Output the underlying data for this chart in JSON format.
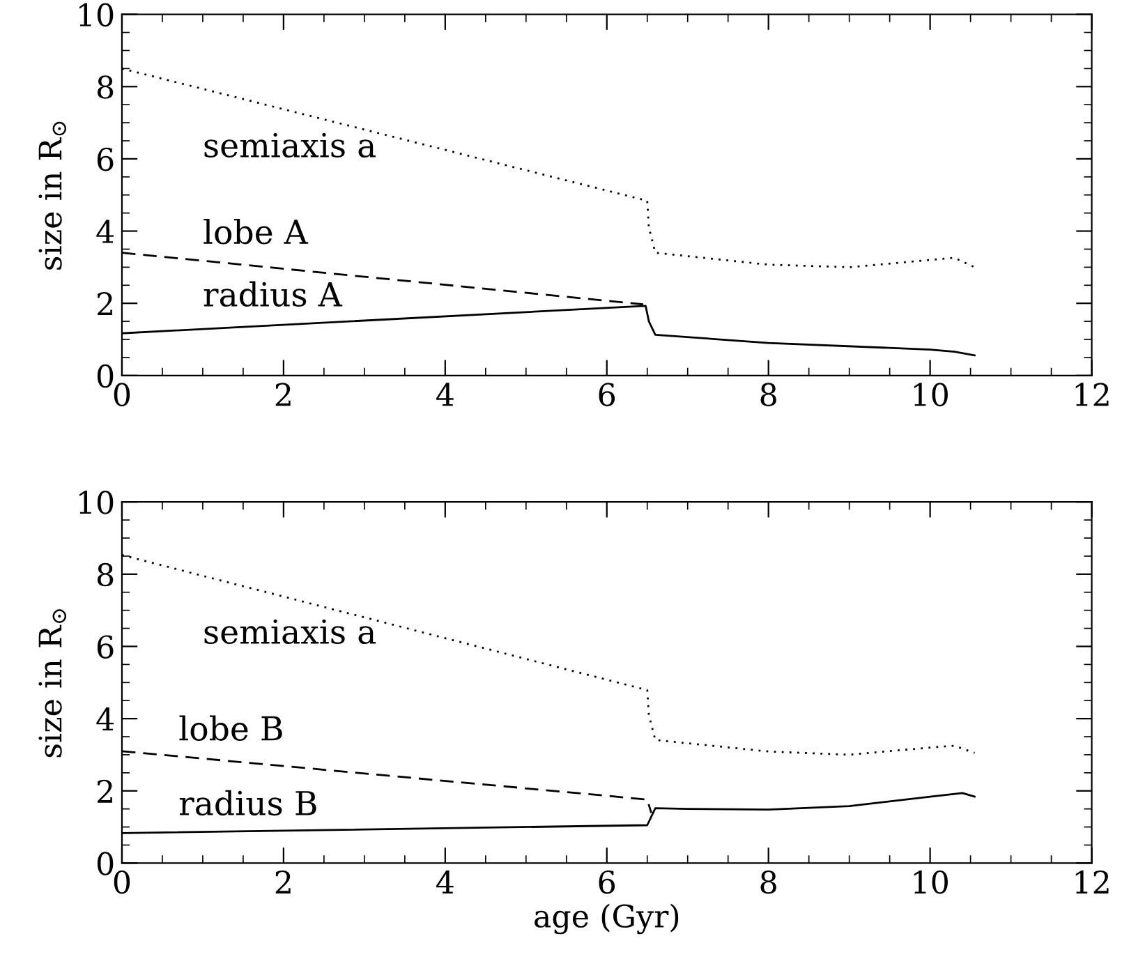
{
  "chart_data": [
    {
      "type": "line",
      "ylabel": "size in R$_{⊙}$",
      "xlim": [
        0,
        12
      ],
      "ylim": [
        0,
        10
      ],
      "xticks": [
        0,
        2,
        4,
        6,
        8,
        10,
        12
      ],
      "yticks": [
        0,
        2,
        4,
        6,
        8,
        10
      ],
      "grid": false,
      "legend": false,
      "marker": "none",
      "series": [
        {
          "name": "semiaxis a",
          "color": "#000000",
          "line_style": "dotted",
          "x": [
            0,
            6.5,
            6.52,
            6.6,
            8,
            9,
            10,
            10.3,
            10.55
          ],
          "values": [
            8.5,
            4.84,
            4.1,
            3.4,
            3.07,
            3.0,
            3.2,
            3.26,
            3.0
          ]
        },
        {
          "name": "lobe A",
          "color": "#000000",
          "line_style": "dashed",
          "x": [
            0,
            6.45
          ],
          "values": [
            3.4,
            1.97
          ]
        },
        {
          "name": "radius A",
          "color": "#000000",
          "line_style": "solid",
          "x": [
            0,
            6.48,
            6.52,
            6.6,
            8,
            10,
            10.3,
            10.55
          ],
          "values": [
            1.17,
            1.93,
            1.5,
            1.13,
            0.9,
            0.72,
            0.66,
            0.56
          ]
        }
      ]
    },
    {
      "type": "line",
      "xlabel": "age (Gyr)",
      "ylabel": "size in R$_{⊙}$",
      "xlim": [
        0,
        12
      ],
      "ylim": [
        0,
        10
      ],
      "xticks": [
        0,
        2,
        4,
        6,
        8,
        10,
        12
      ],
      "yticks": [
        0,
        2,
        4,
        6,
        8,
        10
      ],
      "grid": false,
      "legend": false,
      "marker": "none",
      "series": [
        {
          "name": "semiaxis a",
          "color": "#000000",
          "line_style": "dotted",
          "x": [
            0,
            6.5,
            6.52,
            6.6,
            8,
            9,
            10,
            10.3,
            10.55
          ],
          "values": [
            8.53,
            4.79,
            4.1,
            3.41,
            3.09,
            3.0,
            3.2,
            3.25,
            3.05
          ]
        },
        {
          "name": "lobe B",
          "color": "#000000",
          "line_style": "dashed",
          "x": [
            0,
            6.5,
            6.55
          ],
          "values": [
            3.1,
            1.76,
            1.39
          ]
        },
        {
          "name": "radius B",
          "color": "#000000",
          "line_style": "solid",
          "x": [
            0,
            6.5,
            6.6,
            7,
            8,
            9,
            10,
            10.4,
            10.55
          ],
          "values": [
            0.83,
            1.05,
            1.52,
            1.5,
            1.48,
            1.58,
            1.84,
            1.94,
            1.84
          ]
        }
      ]
    }
  ]
}
